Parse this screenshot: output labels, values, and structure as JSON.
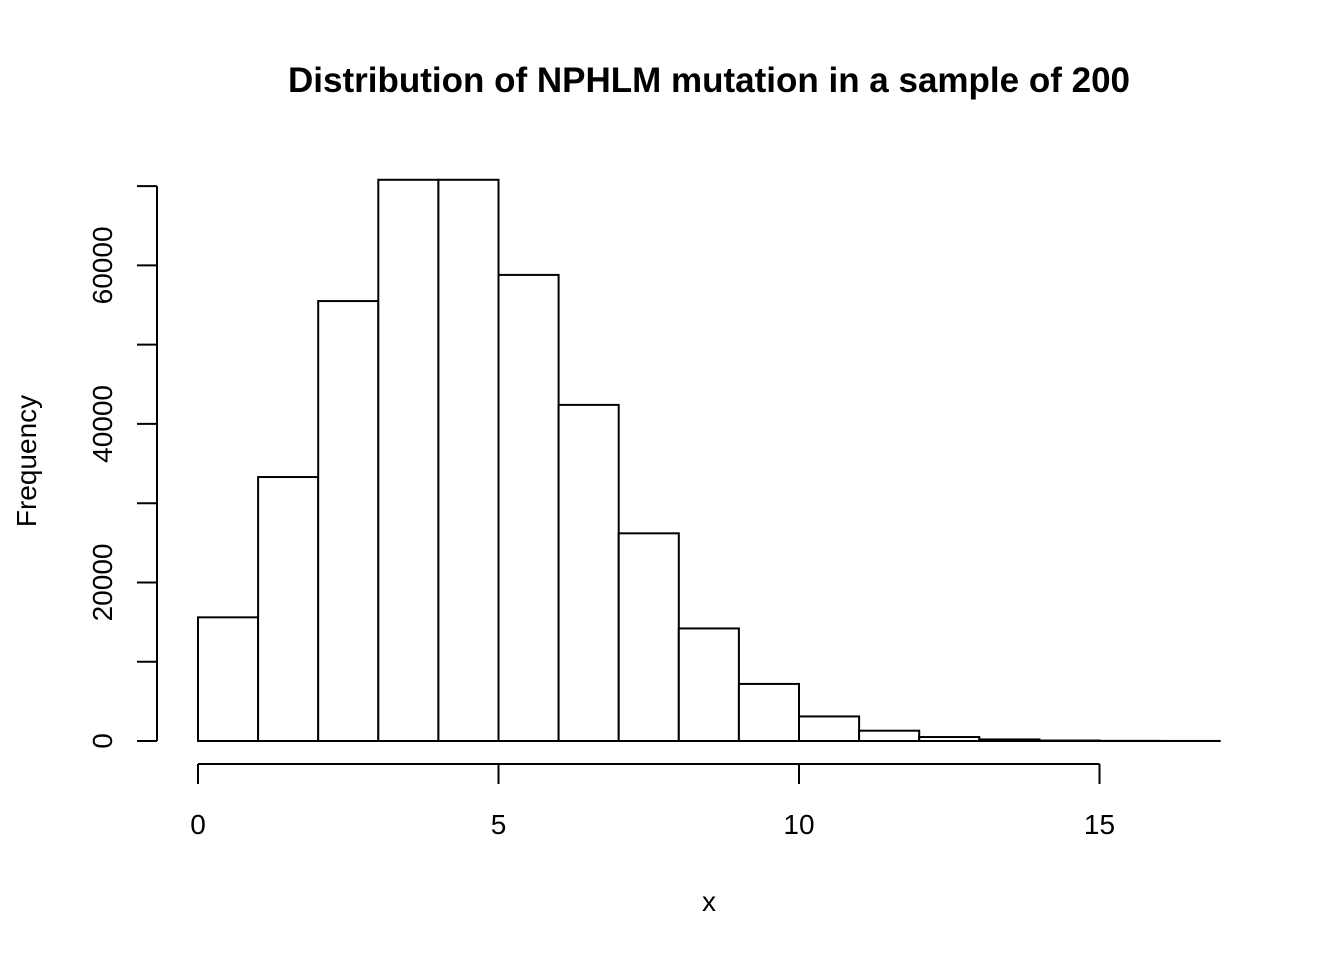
{
  "chart_data": {
    "type": "bar",
    "title": "Distribution of NPHLM mutation in a sample of 200",
    "xlabel": "x",
    "ylabel": "Frequency",
    "bin_edges": [
      0,
      1,
      2,
      3,
      4,
      5,
      6,
      7,
      8,
      9,
      10,
      11,
      12,
      13,
      14,
      15,
      16,
      17
    ],
    "values": [
      15600,
      33300,
      55500,
      70800,
      70800,
      58800,
      42400,
      26200,
      14200,
      7200,
      3100,
      1300,
      500,
      200,
      60,
      20,
      5
    ],
    "xlim": [
      0,
      17
    ],
    "ylim": [
      0,
      70000
    ],
    "x_ticks": [
      0,
      5,
      10,
      15
    ],
    "x_tick_labels": [
      "0",
      "5",
      "10",
      "15"
    ],
    "y_ticks": [
      0,
      10000,
      20000,
      30000,
      40000,
      50000,
      60000,
      70000
    ],
    "y_tick_labels": [
      "0",
      "",
      "20000",
      "",
      "40000",
      "",
      "60000",
      ""
    ],
    "grid": false,
    "bar_fill": "#ffffff",
    "bar_stroke": "#000000"
  }
}
